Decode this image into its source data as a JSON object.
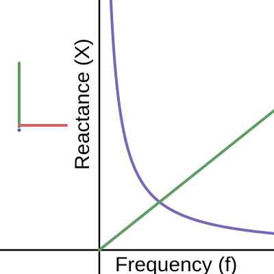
{
  "chart_data": {
    "type": "line",
    "title": "",
    "xlabel": "Frequency (f)",
    "ylabel": "Reactance (X)",
    "xlim": [
      0,
      1
    ],
    "ylim": [
      0,
      1
    ],
    "grid": false,
    "series": [
      {
        "kind": "hyperbola",
        "color": "#7b65b8",
        "coefficient": 0.0385
      },
      {
        "kind": "linear",
        "color": "#5c9e62",
        "slope": 0.7975
      }
    ],
    "highlight": {
      "x": 0.905,
      "upper_y": 0.7225,
      "lower_y": 0.0425,
      "upper_color": "#3f8a47",
      "lower_color": "#6a4fb0",
      "dashed_color": "#5c9e62"
    },
    "legend_marker": {
      "vertical_color": "#5c9e62",
      "horizontal_color": "#d9605a",
      "corner_color": "#6a4fb0"
    }
  }
}
